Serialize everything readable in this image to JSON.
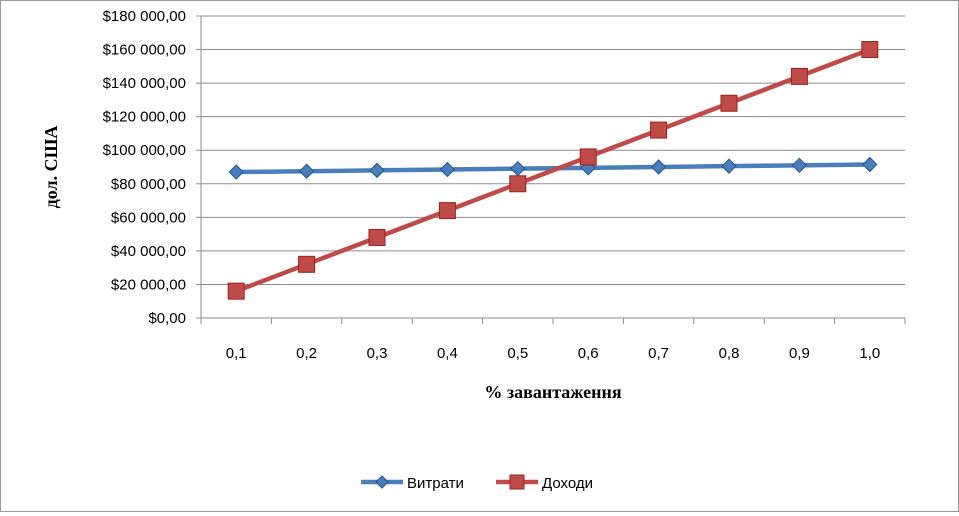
{
  "chart_data": {
    "type": "line",
    "categories": [
      "0,1",
      "0,2",
      "0,3",
      "0,4",
      "0,5",
      "0,6",
      "0,7",
      "0,8",
      "0,9",
      "1,0"
    ],
    "series": [
      {
        "name": "Витрати",
        "color": "#4a7ebb",
        "marker": "diamond",
        "values": [
          87000,
          87500,
          88000,
          88500,
          89000,
          89500,
          90000,
          90500,
          91000,
          91500
        ]
      },
      {
        "name": "Доходи",
        "color": "#be4b48",
        "marker": "square",
        "values": [
          16000,
          32000,
          48000,
          64000,
          80000,
          96000,
          112000,
          128000,
          144000,
          160000
        ]
      }
    ],
    "xlabel": "% завантаження",
    "ylabel": "дол. США",
    "ylim": [
      0,
      180000
    ],
    "yticks": [
      0,
      20000,
      40000,
      60000,
      80000,
      100000,
      120000,
      140000,
      160000,
      180000
    ],
    "ytick_labels": [
      "$0,00",
      "$20 000,00",
      "$40 000,00",
      "$60 000,00",
      "$80 000,00",
      "$100 000,00",
      "$120 000,00",
      "$140 000,00",
      "$160 000,00",
      "$180 000,00"
    ],
    "grid": true,
    "legend": "bottom"
  }
}
